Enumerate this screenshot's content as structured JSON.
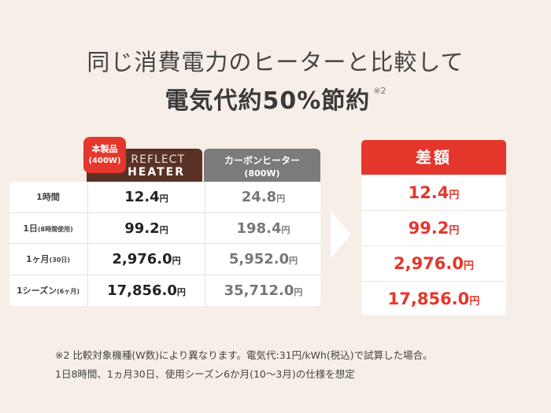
{
  "headline": "同じ消費電力のヒーターと比較して",
  "subline": {
    "main": "電気代約50%節約",
    "note": "※2"
  },
  "badge": {
    "line1": "本製品",
    "line2": "(400W)"
  },
  "product_header": {
    "line1": "REFLECT",
    "line2": "HEATER"
  },
  "carbon_header": {
    "line1": "カーボンヒーター",
    "line2": "(800W)"
  },
  "rows": [
    {
      "label": "1時間",
      "sub": "",
      "product": "12.4",
      "carbon": "24.8",
      "unit": "円"
    },
    {
      "label": "1日",
      "sub": "(8時間使用)",
      "product": "99.2",
      "carbon": "198.4",
      "unit": "円"
    },
    {
      "label": "1ヶ月",
      "sub": "(30日)",
      "product": "2,976.0",
      "carbon": "5,952.0",
      "unit": "円"
    },
    {
      "label": "1シーズン",
      "sub": "(6ヶ月)",
      "product": "17,856.0",
      "carbon": "35,712.0",
      "unit": "円"
    }
  ],
  "diff": {
    "header": "差額",
    "values": [
      "12.4",
      "99.2",
      "2,976.0",
      "17,856.0"
    ],
    "unit": "円"
  },
  "footnote": {
    "line1": "※2 比較対象機種(W数)により異なります。電気代:31円/kWh(税込)で試算した場合。",
    "line2": "1日8時間、1ヵ月30日、使用シーズン6か月(10〜3月)の仕様を想定"
  }
}
